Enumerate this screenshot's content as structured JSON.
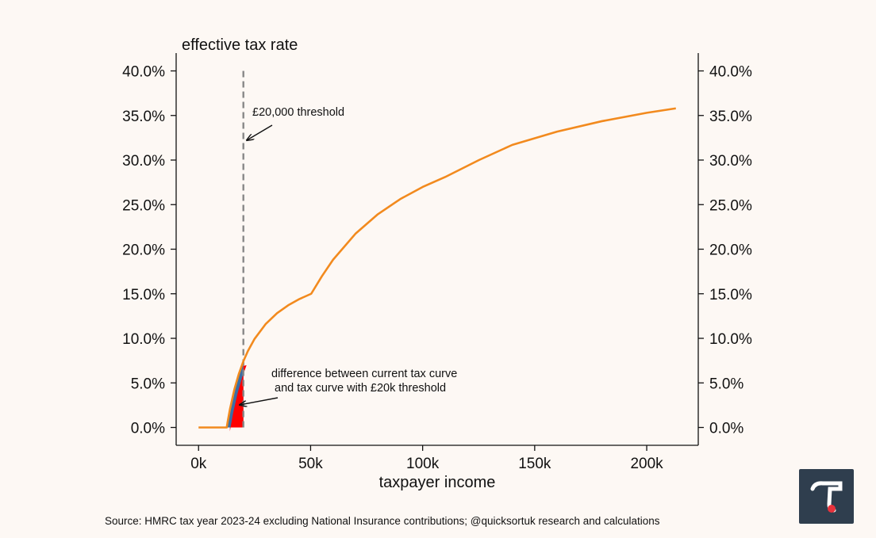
{
  "chart_data": {
    "type": "line",
    "ylabel": "effective tax rate",
    "xlabel": "taxpayer income",
    "xlim": [
      -10000,
      223000
    ],
    "ylim": [
      -2,
      42
    ],
    "x_ticks": [
      {
        "value": 0,
        "label": "0k"
      },
      {
        "value": 50000,
        "label": "50k"
      },
      {
        "value": 100000,
        "label": "100k"
      },
      {
        "value": 150000,
        "label": "150k"
      },
      {
        "value": 200000,
        "label": "200k"
      }
    ],
    "y_ticks": [
      {
        "value": 0,
        "label": "0.0%"
      },
      {
        "value": 5,
        "label": "5.0%"
      },
      {
        "value": 10,
        "label": "10.0%"
      },
      {
        "value": 15,
        "label": "15.0%"
      },
      {
        "value": 20,
        "label": "20.0%"
      },
      {
        "value": 25,
        "label": "25.0%"
      },
      {
        "value": 30,
        "label": "30.0%"
      },
      {
        "value": 35,
        "label": "35.0%"
      },
      {
        "value": 40,
        "label": "40.0%"
      }
    ],
    "series": [
      {
        "name": "current tax curve",
        "color": "#f28a1e",
        "x": [
          0,
          12570,
          13000,
          14000,
          16000,
          18000,
          20000,
          22000,
          25000,
          30000,
          35000,
          40000,
          45000,
          50270,
          55000,
          60000,
          70000,
          80000,
          90000,
          100000,
          110000,
          125140,
          140000,
          160000,
          180000,
          200000,
          213000
        ],
        "values": [
          0,
          0,
          0.66,
          2.04,
          4.29,
          6.03,
          7.43,
          8.57,
          9.94,
          11.62,
          12.82,
          13.71,
          14.41,
          15.0,
          16.95,
          18.81,
          21.73,
          23.92,
          25.62,
          26.98,
          28.09,
          30.0,
          31.7,
          33.19,
          34.36,
          35.3,
          35.8
        ]
      },
      {
        "name": "tax curve with £20k threshold",
        "color": "#3a6ea5",
        "x": [
          0,
          12570,
          20000
        ],
        "values": [
          0,
          0,
          0
        ]
      }
    ],
    "vline": {
      "x": 20000,
      "label": "£20,000 threshold",
      "color": "#888888"
    },
    "shaded_difference": {
      "x_from": 12570,
      "x_to": 20000,
      "fill": "#ff0000",
      "edge": "#3a6ea5"
    },
    "annotations": [
      {
        "text": "£20,000 threshold"
      },
      {
        "text_line1": "difference between current tax curve",
        "text_line2": " and tax curve with £20k threshold"
      }
    ]
  },
  "footer": {
    "source": "Source: HMRC tax year 2023-24 excluding National Insurance contributions; @quicksortuk research and calculations"
  },
  "logo": {
    "glyph": "τ",
    "bg": "#2f3e4e",
    "accent": "#e8323c"
  }
}
